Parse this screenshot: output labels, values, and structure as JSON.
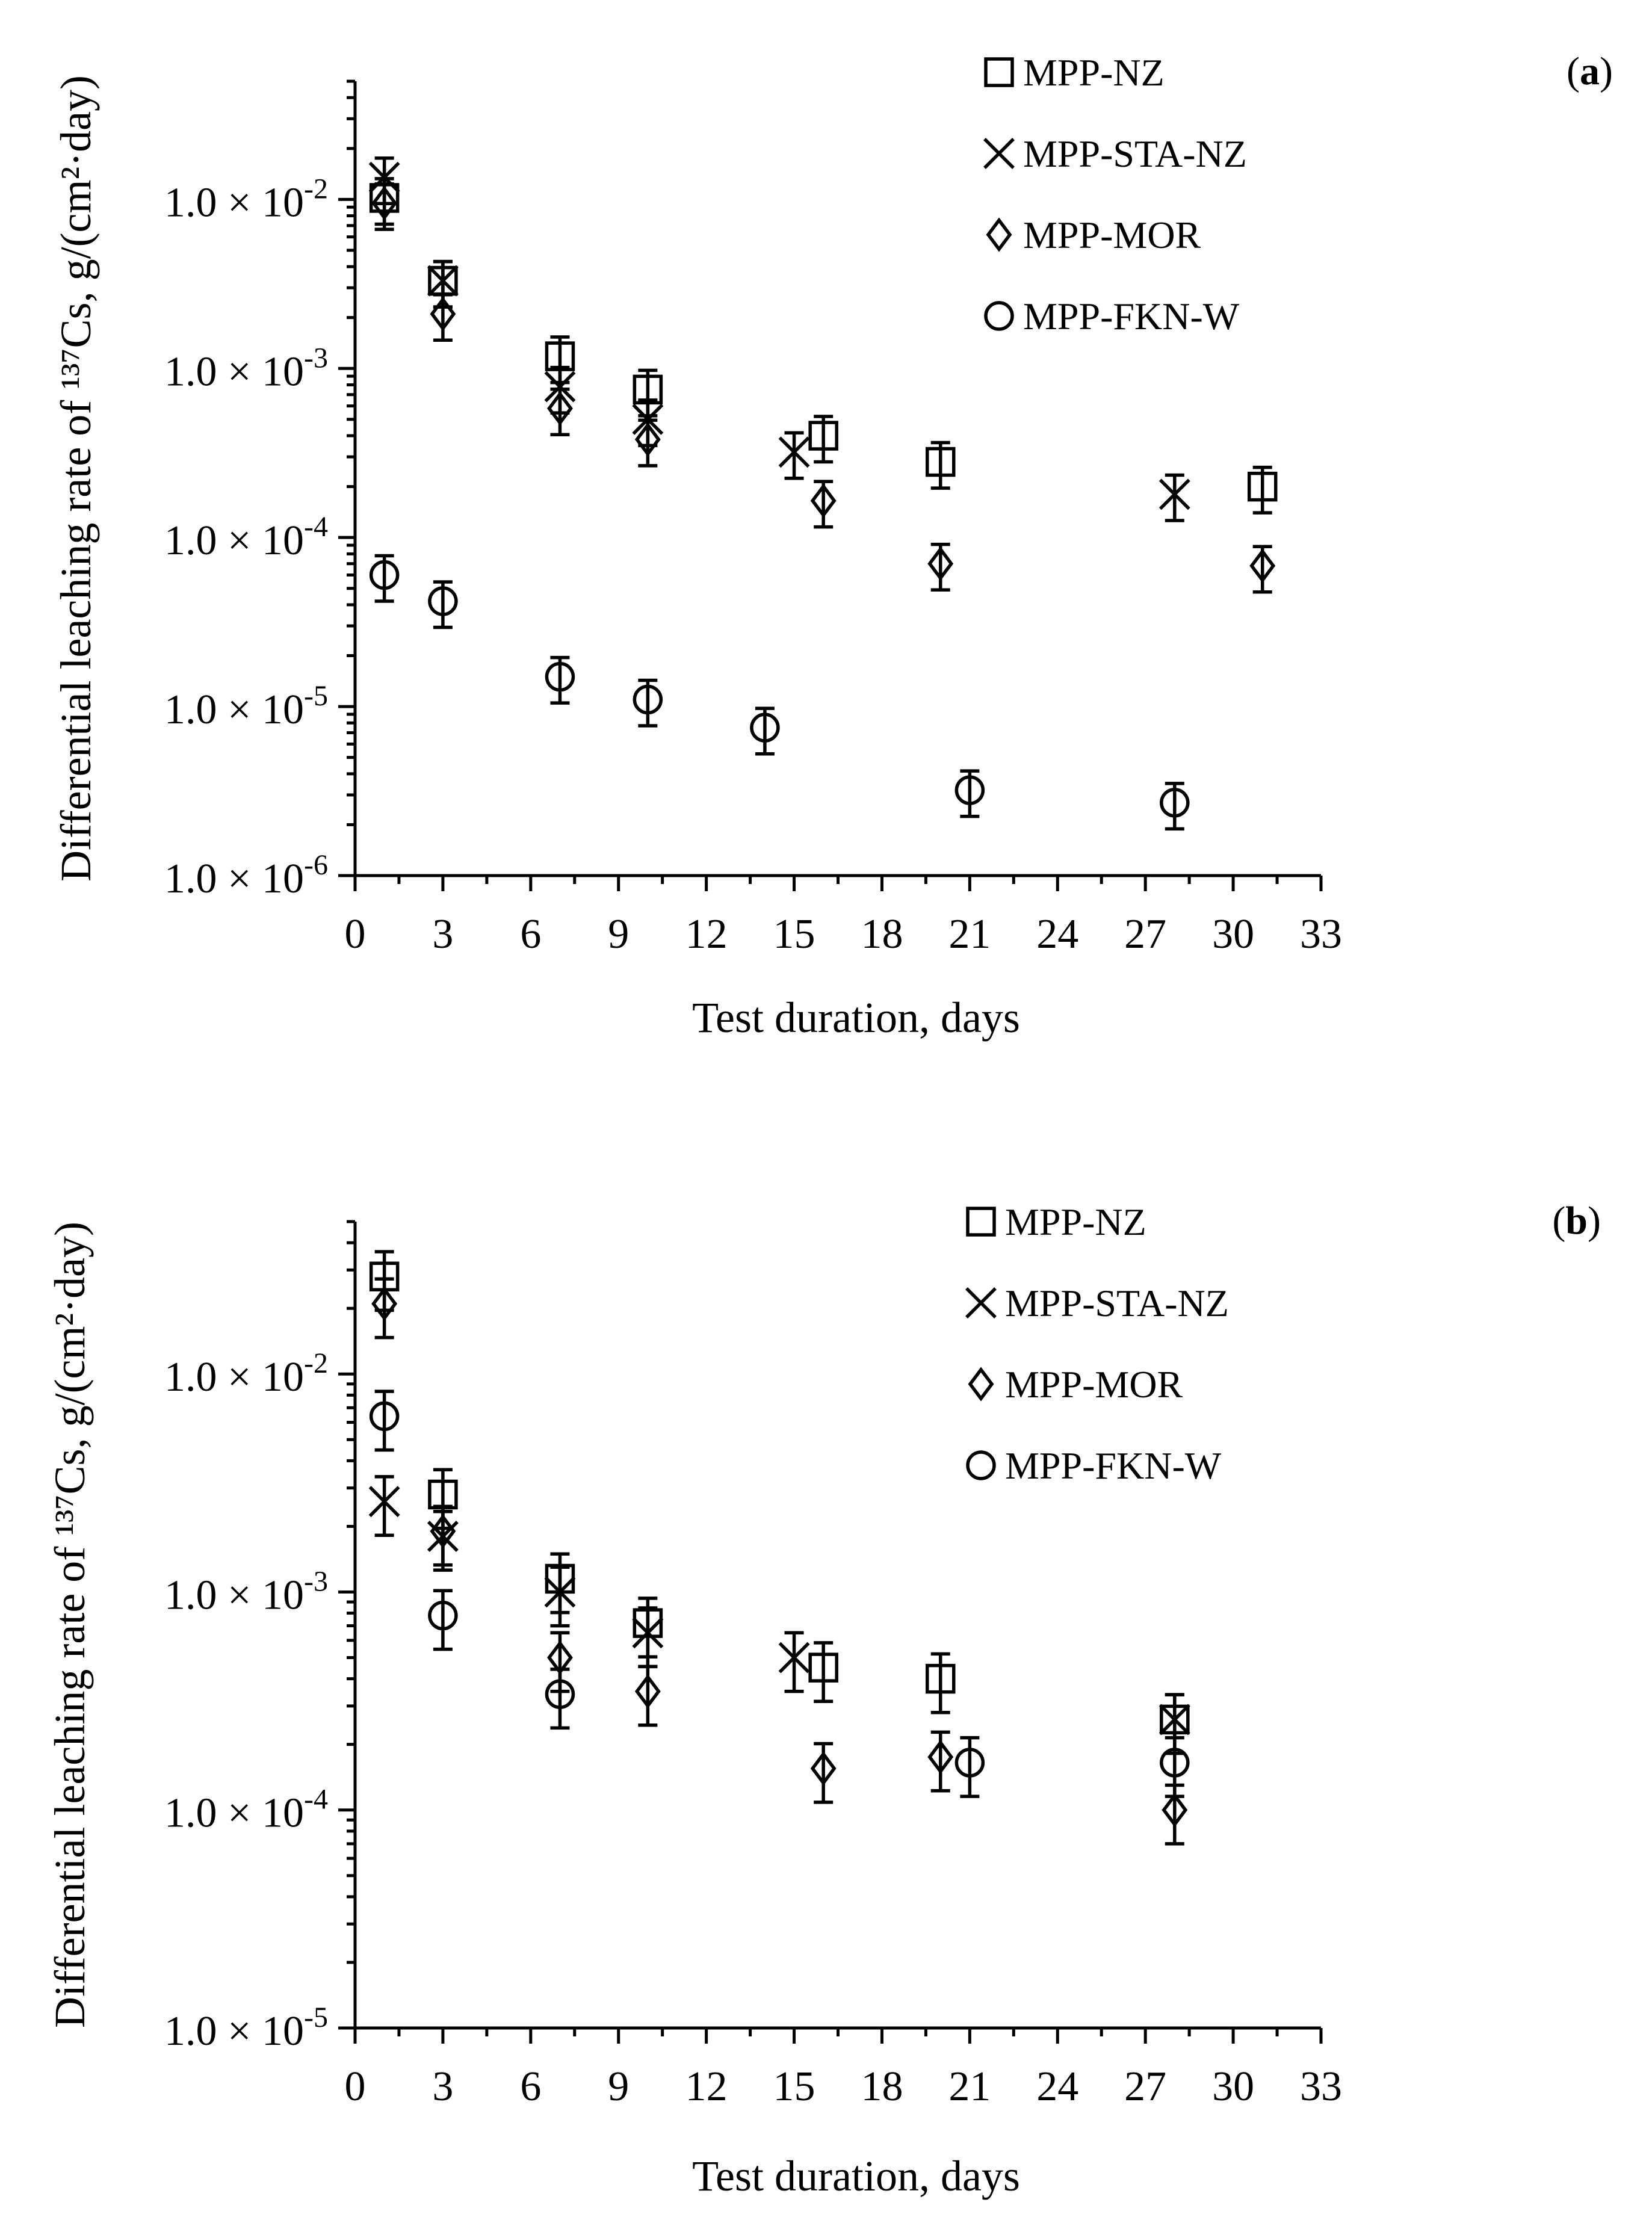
{
  "chart_data": [
    {
      "panel_label": "a",
      "type": "scatter",
      "yscale": "log",
      "xlabel": "Test duration, days",
      "ylabel": "Differential leaching rate of ¹³⁷Cs, g/(cm²·day)",
      "xlim": [
        0,
        33
      ],
      "ylim": [
        1e-06,
        0.05
      ],
      "xticks": [
        "0",
        "3",
        "6",
        "9",
        "12",
        "15",
        "18",
        "21",
        "24",
        "27",
        "30",
        "33"
      ],
      "ytick_mantissa": "1.0 × 10",
      "yticks": [
        {
          "exp": "-2",
          "value": 0.01
        },
        {
          "exp": "-3",
          "value": 0.001
        },
        {
          "exp": "-4",
          "value": 0.0001
        },
        {
          "exp": "-5",
          "value": 1e-05
        },
        {
          "exp": "-6",
          "value": 1e-06
        }
      ],
      "legend_position": "top-right",
      "series": [
        {
          "name": "MPP-NZ",
          "marker": "square",
          "x": [
            1,
            3,
            7,
            10,
            16,
            20,
            31
          ],
          "y": [
            0.0102,
            0.0033,
            0.00118,
            0.00075,
            0.0004,
            0.00028,
            0.0002
          ],
          "err": [
            0.3,
            0.3,
            0.3,
            0.3,
            0.3,
            0.3,
            0.3
          ]
        },
        {
          "name": "MPP-STA-NZ",
          "marker": "x",
          "x": [
            1,
            3,
            7,
            10,
            15,
            28
          ],
          "y": [
            0.0135,
            0.0033,
            0.00078,
            0.0005,
            0.00032,
            0.00018
          ],
          "err": [
            0.3,
            0.3,
            0.3,
            0.3,
            0.3,
            0.3
          ]
        },
        {
          "name": "MPP-MOR",
          "marker": "diamond",
          "x": [
            1,
            3,
            7,
            10,
            16,
            20,
            31
          ],
          "y": [
            0.0095,
            0.0021,
            0.00058,
            0.00038,
            0.000165,
            7e-05,
            6.8e-05
          ],
          "err": [
            0.3,
            0.3,
            0.3,
            0.3,
            0.3,
            0.3,
            0.3
          ]
        },
        {
          "name": "MPP-FKN-W",
          "marker": "circle",
          "x": [
            1,
            3,
            7,
            10,
            14,
            21,
            28
          ],
          "y": [
            6e-05,
            4.2e-05,
            1.5e-05,
            1.1e-05,
            7.5e-06,
            3.2e-06,
            2.7e-06
          ],
          "err": [
            0.3,
            0.3,
            0.3,
            0.3,
            0.3,
            0.3,
            0.3
          ]
        }
      ]
    },
    {
      "panel_label": "b",
      "type": "scatter",
      "yscale": "log",
      "xlabel": "Test duration, days",
      "ylabel": "Differential leaching rate of ¹³⁷Cs, g/(cm²·day)",
      "xlim": [
        0,
        33
      ],
      "ylim": [
        1e-05,
        0.05
      ],
      "xticks": [
        "0",
        "3",
        "6",
        "9",
        "12",
        "15",
        "18",
        "21",
        "24",
        "27",
        "30",
        "33"
      ],
      "ytick_mantissa": "1.0 × 10",
      "yticks": [
        {
          "exp": "-2",
          "value": 0.01
        },
        {
          "exp": "-3",
          "value": 0.001
        },
        {
          "exp": "-4",
          "value": 0.0001
        },
        {
          "exp": "-5",
          "value": 1e-05
        }
      ],
      "legend_position": "top-right",
      "series": [
        {
          "name": "MPP-NZ",
          "marker": "square",
          "x": [
            1,
            3,
            7,
            10,
            16,
            20,
            28
          ],
          "y": [
            0.028,
            0.0028,
            0.00115,
            0.00072,
            0.00045,
            0.0004,
            0.00026
          ],
          "err": [
            0.3,
            0.3,
            0.3,
            0.3,
            0.3,
            0.3,
            0.3
          ]
        },
        {
          "name": "MPP-STA-NZ",
          "marker": "x",
          "x": [
            1,
            3,
            7,
            10,
            15,
            28
          ],
          "y": [
            0.0026,
            0.0018,
            0.001,
            0.00065,
            0.0005,
            0.00026
          ],
          "err": [
            0.3,
            0.3,
            0.3,
            0.3,
            0.3,
            0.3
          ]
        },
        {
          "name": "MPP-MOR",
          "marker": "diamond",
          "x": [
            1,
            3,
            7,
            10,
            16,
            20,
            28
          ],
          "y": [
            0.021,
            0.0019,
            0.0005,
            0.00035,
            0.000155,
            0.000175,
            0.0001
          ],
          "err": [
            0.3,
            0.3,
            0.3,
            0.3,
            0.3,
            0.3,
            0.3
          ]
        },
        {
          "name": "MPP-FKN-W",
          "marker": "circle",
          "x": [
            1,
            3,
            7,
            21,
            28
          ],
          "y": [
            0.0064,
            0.00078,
            0.00034,
            0.000165,
            0.000165
          ],
          "err": [
            0.3,
            0.3,
            0.3,
            0.3,
            0.3
          ]
        }
      ]
    }
  ]
}
